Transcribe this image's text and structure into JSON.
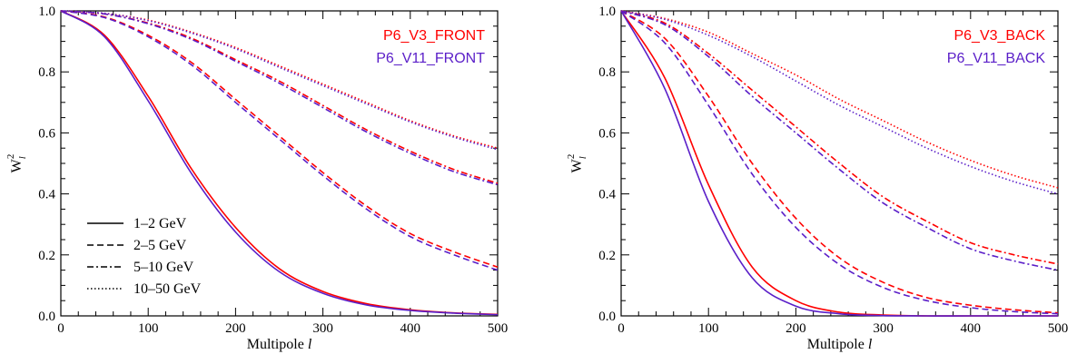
{
  "colors": {
    "v3": "#ff0000",
    "v11": "#5a1ec8",
    "axis": "#000000"
  },
  "legend_lines": [
    {
      "label": "1–2 GeV",
      "style": "solid"
    },
    {
      "label": "2–5 GeV",
      "style": "dashed"
    },
    {
      "label": "5–10 GeV",
      "style": "dashdot"
    },
    {
      "label": "10–50 GeV",
      "style": "dotted"
    }
  ],
  "chart_data": [
    {
      "type": "line",
      "panel": "front",
      "xlabel": "Multipole l",
      "ylabel": "W_l^2",
      "xlim": [
        0,
        500
      ],
      "ylim": [
        0,
        1.0
      ],
      "xticks": [
        "0",
        "100",
        "200",
        "300",
        "400",
        "500"
      ],
      "yticks": [
        "0.0",
        "0.2",
        "0.4",
        "0.6",
        "0.8",
        "1.0"
      ],
      "legend_labels": [
        "P6_V3_FRONT",
        "P6_V11_FRONT"
      ],
      "x": [
        0,
        50,
        100,
        150,
        200,
        250,
        300,
        350,
        400,
        450,
        500
      ],
      "series": [
        {
          "name": "P6_V3_FRONT",
          "energy": "1–2 GeV",
          "style": "solid",
          "color": "v3",
          "values": [
            1.0,
            0.92,
            0.72,
            0.48,
            0.29,
            0.155,
            0.08,
            0.04,
            0.02,
            0.01,
            0.005
          ]
        },
        {
          "name": "P6_V11_FRONT",
          "energy": "1–2 GeV",
          "style": "solid",
          "color": "v11",
          "values": [
            1.0,
            0.915,
            0.705,
            0.465,
            0.275,
            0.145,
            0.074,
            0.036,
            0.018,
            0.009,
            0.004
          ]
        },
        {
          "name": "P6_V3_FRONT",
          "energy": "2–5 GeV",
          "style": "dashed",
          "color": "v3",
          "values": [
            1.0,
            0.98,
            0.92,
            0.83,
            0.71,
            0.59,
            0.47,
            0.36,
            0.27,
            0.21,
            0.16
          ]
        },
        {
          "name": "P6_V11_FRONT",
          "energy": "2–5 GeV",
          "style": "dashed",
          "color": "v11",
          "values": [
            1.0,
            0.978,
            0.915,
            0.822,
            0.7,
            0.58,
            0.46,
            0.35,
            0.26,
            0.2,
            0.15
          ]
        },
        {
          "name": "P6_V3_FRONT",
          "energy": "5–10 GeV",
          "style": "dashdot",
          "color": "v3",
          "values": [
            1.0,
            0.99,
            0.96,
            0.91,
            0.84,
            0.77,
            0.69,
            0.61,
            0.54,
            0.48,
            0.435
          ]
        },
        {
          "name": "P6_V11_FRONT",
          "energy": "5–10 GeV",
          "style": "dashdot",
          "color": "v11",
          "values": [
            1.0,
            0.99,
            0.958,
            0.906,
            0.835,
            0.763,
            0.683,
            0.603,
            0.533,
            0.473,
            0.43
          ]
        },
        {
          "name": "P6_V3_FRONT",
          "energy": "10–50 GeV",
          "style": "dotted",
          "color": "v3",
          "values": [
            1.0,
            0.992,
            0.97,
            0.93,
            0.88,
            0.82,
            0.76,
            0.7,
            0.64,
            0.59,
            0.55
          ]
        },
        {
          "name": "P6_V11_FRONT",
          "energy": "10–50 GeV",
          "style": "dotted",
          "color": "v11",
          "values": [
            1.0,
            0.992,
            0.968,
            0.927,
            0.876,
            0.815,
            0.755,
            0.695,
            0.636,
            0.586,
            0.545
          ]
        }
      ]
    },
    {
      "type": "line",
      "panel": "back",
      "xlabel": "Multipole l",
      "ylabel": "W_l^2",
      "xlim": [
        0,
        500
      ],
      "ylim": [
        0,
        1.0
      ],
      "xticks": [
        "0",
        "100",
        "200",
        "300",
        "400",
        "500"
      ],
      "yticks": [
        "0.0",
        "0.2",
        "0.4",
        "0.6",
        "0.8",
        "1.0"
      ],
      "legend_labels": [
        "P6_V3_BACK",
        "P6_V11_BACK"
      ],
      "x": [
        0,
        50,
        100,
        150,
        200,
        250,
        300,
        350,
        400,
        450,
        500
      ],
      "series": [
        {
          "name": "P6_V3_BACK",
          "energy": "1–2 GeV",
          "style": "solid",
          "color": "v3",
          "values": [
            1.0,
            0.78,
            0.43,
            0.16,
            0.05,
            0.012,
            0.003,
            0.0,
            0.0,
            0.0,
            0.0
          ]
        },
        {
          "name": "P6_V11_BACK",
          "energy": "1–2 GeV",
          "style": "solid",
          "color": "v11",
          "values": [
            1.0,
            0.745,
            0.375,
            0.125,
            0.032,
            0.007,
            0.001,
            0.0,
            0.0,
            0.0,
            0.0
          ]
        },
        {
          "name": "P6_V3_BACK",
          "energy": "2–5 GeV",
          "style": "dashed",
          "color": "v3",
          "values": [
            1.0,
            0.91,
            0.72,
            0.5,
            0.32,
            0.19,
            0.11,
            0.06,
            0.035,
            0.02,
            0.01
          ]
        },
        {
          "name": "P6_V11_BACK",
          "energy": "2–5 GeV",
          "style": "dashed",
          "color": "v11",
          "values": [
            1.0,
            0.895,
            0.69,
            0.465,
            0.29,
            0.168,
            0.093,
            0.05,
            0.027,
            0.014,
            0.007
          ]
        },
        {
          "name": "P6_V3_BACK",
          "energy": "5–10 GeV",
          "style": "dashdot",
          "color": "v3",
          "values": [
            1.0,
            0.96,
            0.86,
            0.74,
            0.62,
            0.5,
            0.39,
            0.31,
            0.24,
            0.2,
            0.17
          ]
        },
        {
          "name": "P6_V11_BACK",
          "energy": "5–10 GeV",
          "style": "dashdot",
          "color": "v11",
          "values": [
            1.0,
            0.955,
            0.85,
            0.72,
            0.6,
            0.48,
            0.37,
            0.29,
            0.22,
            0.18,
            0.15
          ]
        },
        {
          "name": "P6_V3_BACK",
          "energy": "10–50 GeV",
          "style": "dotted",
          "color": "v3",
          "values": [
            1.0,
            0.975,
            0.93,
            0.86,
            0.79,
            0.71,
            0.64,
            0.57,
            0.51,
            0.46,
            0.42
          ]
        },
        {
          "name": "P6_V11_BACK",
          "energy": "10–50 GeV",
          "style": "dotted",
          "color": "v11",
          "values": [
            1.0,
            0.972,
            0.92,
            0.85,
            0.77,
            0.69,
            0.62,
            0.55,
            0.49,
            0.44,
            0.4
          ]
        }
      ]
    }
  ]
}
